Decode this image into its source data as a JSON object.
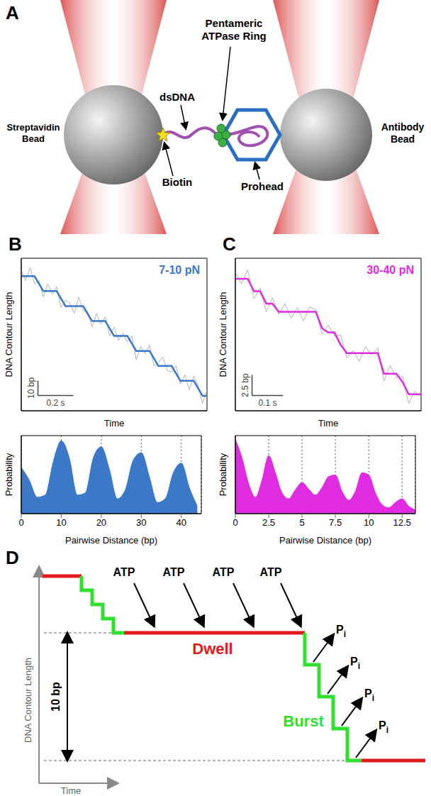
{
  "panel_a": {
    "panel": "A",
    "streptavidin_bead": "Streptavidin Bead",
    "dsdna": "dsDNA",
    "ring": "Pentameric ATPase Ring",
    "biotin": "Biotin",
    "prohead": "Prohead",
    "antibody_bead": "Antibody Bead"
  },
  "chart_data": [
    {
      "type": "line",
      "panel": "B",
      "annotation": "7-10 pN",
      "x_label": "Time",
      "y_label": "DNA Contour Length",
      "tick_labels": false,
      "xlim": [
        0,
        1.05
      ],
      "ylim": [
        -10,
        92
      ],
      "x": [
        0,
        0.025,
        0.05,
        0.075,
        0.1,
        0.125,
        0.15,
        0.175,
        0.2,
        0.225,
        0.25,
        0.275,
        0.3,
        0.325,
        0.35,
        0.375,
        0.4,
        0.425,
        0.45,
        0.475,
        0.5,
        0.525,
        0.55,
        0.575,
        0.6,
        0.625,
        0.65,
        0.675,
        0.7,
        0.725,
        0.75,
        0.775,
        0.8,
        0.825,
        0.85,
        0.875,
        0.9,
        0.925,
        0.95,
        0.975,
        1.0,
        1.025,
        1.05
      ],
      "series": [
        {
          "color": "#b3b3b3",
          "values": [
            84,
            77,
            86,
            75,
            77,
            66,
            75,
            68,
            73,
            59,
            64,
            62,
            55,
            66,
            57,
            56,
            46,
            55,
            48,
            53,
            40,
            46,
            37,
            42,
            36,
            40,
            24,
            33,
            28,
            34,
            20,
            22,
            26,
            17,
            16,
            20,
            8,
            14,
            4,
            13,
            7,
            -5,
            4
          ]
        },
        {
          "color": "#3b78c8",
          "values": [
            80,
            80,
            80,
            80,
            75,
            70,
            70,
            70,
            70,
            65,
            60,
            60,
            60,
            60,
            60,
            55,
            50,
            50,
            50,
            50,
            45,
            40,
            40,
            40,
            40,
            35,
            30,
            30,
            30,
            30,
            25,
            20,
            20,
            20,
            20,
            15,
            10,
            10,
            10,
            10,
            5,
            0,
            0
          ]
        }
      ],
      "scale_bars": [
        {
          "axis": "y",
          "value": 10,
          "label": "10 bp"
        },
        {
          "axis": "x",
          "value": 0.2,
          "label": "0.2 s"
        }
      ]
    },
    {
      "type": "area",
      "x_label": "Pairwise Distance (bp)",
      "y_label": "Probability",
      "tick_labels": "x",
      "grid": true,
      "color": "#3b78c8",
      "xlim": [
        0,
        45
      ],
      "ylim": [
        0,
        1.05
      ],
      "xticks": [
        0,
        10,
        20,
        30,
        40
      ],
      "x": [
        0,
        2,
        4,
        6,
        8,
        10,
        12,
        14,
        16,
        18,
        20,
        22,
        24,
        26,
        28,
        30,
        32,
        34,
        36,
        38,
        40,
        42,
        44
      ],
      "values": [
        0.62,
        0.45,
        0.22,
        0.25,
        0.7,
        0.98,
        0.75,
        0.25,
        0.28,
        0.75,
        0.9,
        0.6,
        0.2,
        0.32,
        0.72,
        0.82,
        0.5,
        0.15,
        0.2,
        0.55,
        0.68,
        0.35,
        0.1
      ]
    },
    {
      "type": "line",
      "panel": "C",
      "annotation": "30-40 pN",
      "x_label": "Time",
      "y_label": "DNA Contour Length",
      "tick_labels": false,
      "xlim": [
        0,
        0.6
      ],
      "ylim": [
        -2,
        16.5
      ],
      "x": [
        0,
        0.02,
        0.04,
        0.06,
        0.08,
        0.1,
        0.12,
        0.14,
        0.16,
        0.18,
        0.2,
        0.22,
        0.24,
        0.26,
        0.28,
        0.3,
        0.32,
        0.34,
        0.36,
        0.38,
        0.4,
        0.42,
        0.44,
        0.46,
        0.48,
        0.5,
        0.52,
        0.54,
        0.56,
        0.58,
        0.6
      ],
      "series": [
        {
          "color": "#b3b3b3",
          "values": [
            14.8,
            13.4,
            15.1,
            11.6,
            12.9,
            10.0,
            11.7,
            9.7,
            11.0,
            9.2,
            10.5,
            8.9,
            10.6,
            10.2,
            7.3,
            8.4,
            7.1,
            7.2,
            4.4,
            5.3,
            4.0,
            5.8,
            4.8,
            5.6,
            1.6,
            3.5,
            2.0,
            2.2,
            -1.1,
            0.4,
            -0.3
          ]
        },
        {
          "color": "#e02ce0",
          "values": [
            14,
            14,
            14,
            12.5,
            12.5,
            11,
            11,
            10,
            10,
            10,
            10,
            10,
            10,
            10,
            8,
            7.5,
            7.5,
            6,
            5,
            5,
            5,
            5,
            5,
            5,
            2.5,
            2.5,
            2.5,
            1.5,
            0,
            0,
            0
          ]
        }
      ],
      "scale_bars": [
        {
          "axis": "y",
          "value": 2.5,
          "label": "2.5 bp"
        },
        {
          "axis": "x",
          "value": 0.1,
          "label": "0.1 s"
        }
      ]
    },
    {
      "type": "area",
      "x_label": "Pairwise Distance (bp)",
      "y_label": "Probability",
      "tick_labels": "x",
      "grid": true,
      "color": "#e02ce0",
      "xlim": [
        0,
        13.5
      ],
      "ylim": [
        0,
        1.05
      ],
      "xticks": [
        0,
        2.5,
        5,
        7.5,
        10,
        12.5
      ],
      "x": [
        0,
        0.5,
        1,
        1.5,
        2,
        2.5,
        3,
        3.5,
        4,
        4.5,
        5,
        5.5,
        6,
        6.5,
        7,
        7.5,
        8,
        8.5,
        9,
        9.5,
        10,
        10.5,
        11,
        11.5,
        12,
        12.5,
        13,
        13.5
      ],
      "values": [
        1.0,
        0.75,
        0.4,
        0.22,
        0.45,
        0.78,
        0.55,
        0.28,
        0.2,
        0.32,
        0.42,
        0.33,
        0.25,
        0.35,
        0.5,
        0.52,
        0.3,
        0.18,
        0.3,
        0.55,
        0.52,
        0.28,
        0.12,
        0.08,
        0.15,
        0.2,
        0.1,
        0.05
      ]
    }
  ],
  "panel_d": {
    "panel": "D",
    "atp": [
      "ATP",
      "ATP",
      "ATP",
      "ATP"
    ],
    "dwell": "Dwell",
    "burst": "Burst",
    "pi": [
      {
        "main": "P",
        "subscript": "i"
      },
      {
        "main": "P",
        "subscript": "i"
      },
      {
        "main": "P",
        "subscript": "i"
      },
      {
        "main": "P",
        "subscript": "i"
      }
    ],
    "step": "10 bp",
    "y_label": "DNA Contour Length",
    "x_label": "Time"
  }
}
